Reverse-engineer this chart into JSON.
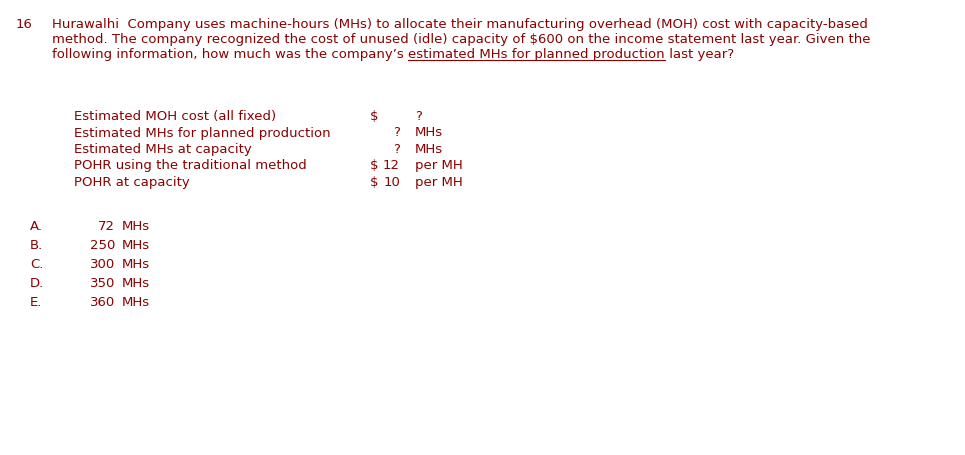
{
  "question_number": "16",
  "q_line1": "Hurawalhi  Company uses machine-hours (MHs) to allocate their manufacturing overhead (MOH) cost with capacity-based",
  "q_line2": "method. The company recognized the cost of unused (idle) capacity of $600 on the income statement last year. Given the",
  "q_line3_pre": "following information, how much was the company’s ",
  "q_line3_ul": "estimated MHs for planned production",
  "q_line3_post": " last year?",
  "table_rows": [
    {
      "label": "Estimated MOH cost (all fixed)",
      "c1": "$",
      "c2": "",
      "c3": "?",
      "c4": ""
    },
    {
      "label": "Estimated MHs for planned production",
      "c1": "",
      "c2": "?",
      "c3": "MHs",
      "c4": ""
    },
    {
      "label": "Estimated MHs at capacity",
      "c1": "",
      "c2": "?",
      "c3": "MHs",
      "c4": ""
    },
    {
      "label": "POHR using the traditional method",
      "c1": "$",
      "c2": "12",
      "c3": "per MH",
      "c4": ""
    },
    {
      "label": "POHR at capacity",
      "c1": "$",
      "c2": "10",
      "c3": "per MH",
      "c4": ""
    }
  ],
  "choices": [
    {
      "letter": "A.",
      "value": "72",
      "unit": "MHs"
    },
    {
      "letter": "B.",
      "value": "250",
      "unit": "MHs"
    },
    {
      "letter": "C.",
      "value": "300",
      "unit": "MHs"
    },
    {
      "letter": "D.",
      "value": "350",
      "unit": "MHs"
    },
    {
      "letter": "E.",
      "value": "360",
      "unit": "MHs"
    }
  ],
  "text_color": "#8B0000",
  "bg_color": "#ffffff",
  "font_size": 9.5,
  "font_family": "DejaVu Sans"
}
